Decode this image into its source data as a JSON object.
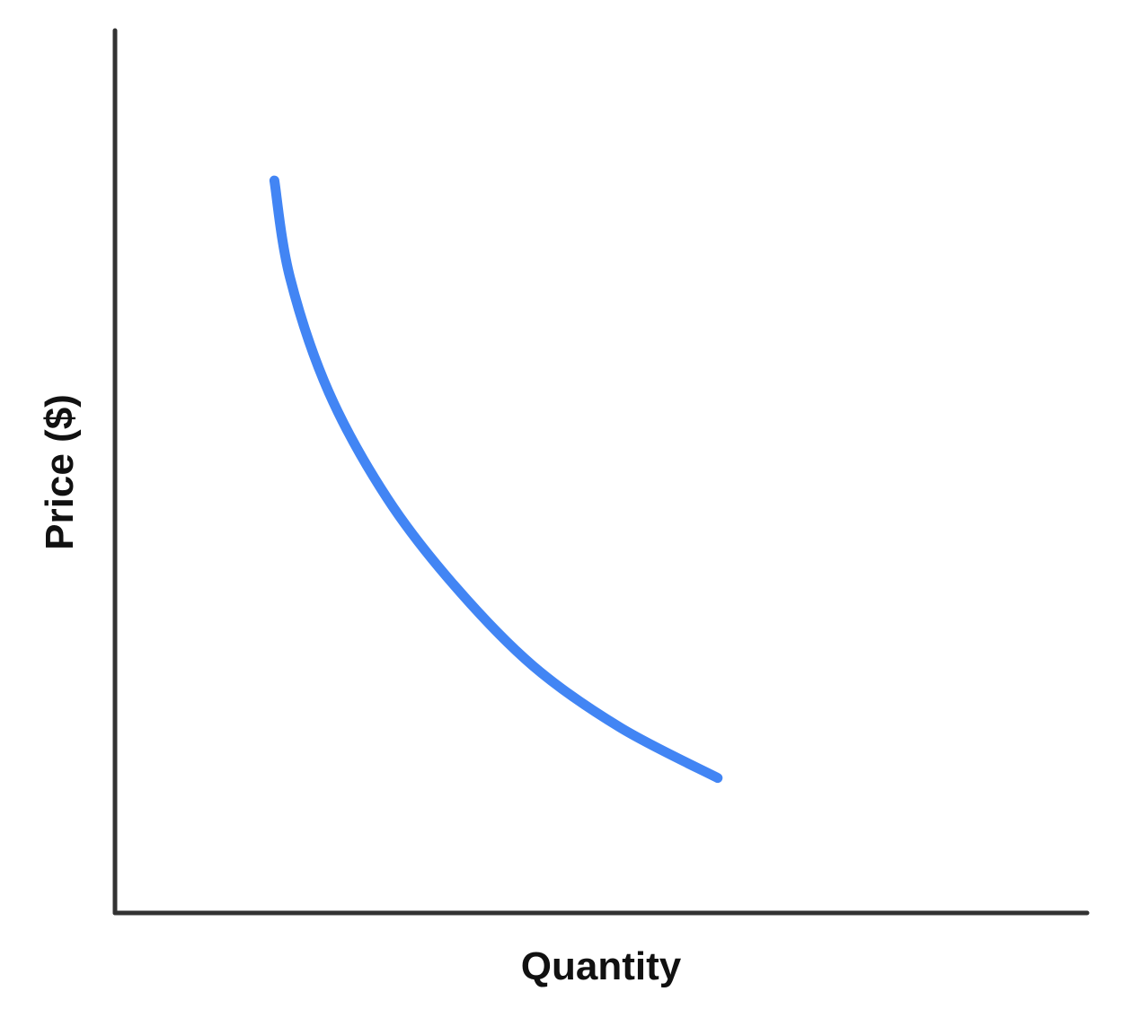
{
  "chart_data": {
    "type": "line",
    "title": "",
    "xlabel": "Quantity",
    "ylabel": "Price ($)",
    "grid": false,
    "ticks": false,
    "xlim": [
      0,
      10
    ],
    "ylim": [
      0,
      10
    ],
    "series": [
      {
        "color": "#4285f4",
        "x": [
          1.64,
          1.8,
          2.2,
          2.8,
          3.5,
          4.3,
          5.2,
          6.2
        ],
        "y": [
          8.3,
          7.2,
          5.9,
          4.7,
          3.7,
          2.8,
          2.1,
          1.53
        ]
      }
    ]
  },
  "colors": {
    "axis": "#333333",
    "curve": "#4285f4",
    "text": "#111111"
  }
}
